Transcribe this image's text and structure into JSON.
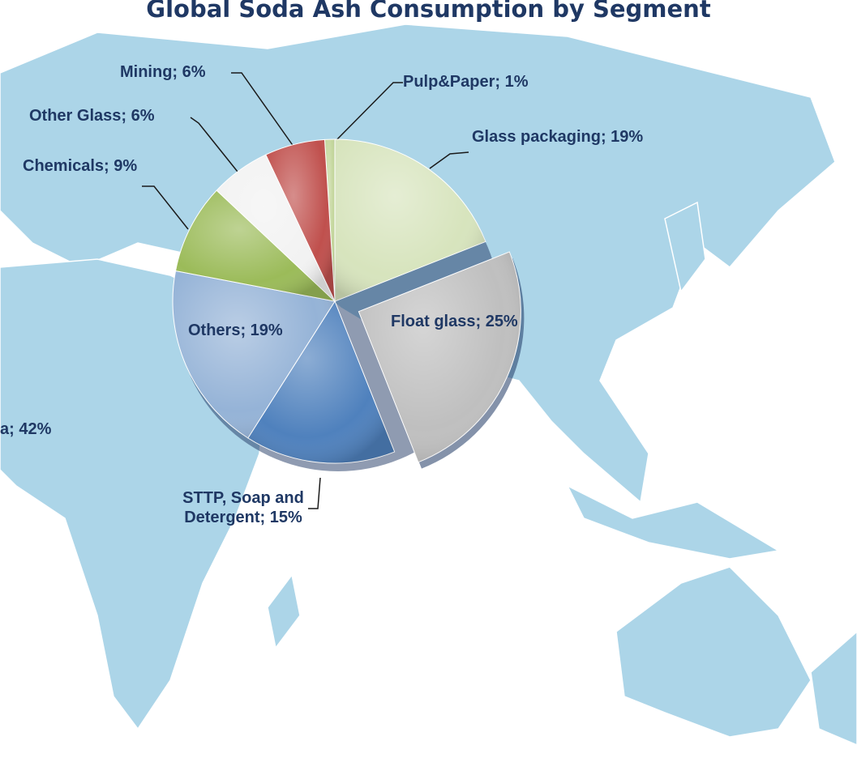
{
  "chart_data": {
    "type": "pie",
    "title": "Global Soda Ash Consumption by Segment",
    "values": [
      1,
      19,
      25,
      15,
      19,
      9,
      6,
      6
    ],
    "value_labels": [
      "Pulp&Paper; 1%",
      "Glass packaging; 19%",
      "Float glass; 25%",
      "STTP, Soap and Detergent; 15%",
      "Others; 19%",
      "Chemicals; 9%",
      "Other Glass; 6%",
      "Mining; 6%"
    ],
    "colors": [
      "#c3d69b",
      "#d7e4bd",
      "#bfbfbf",
      "#4f81bd",
      "#95b3d7",
      "#9bbb59",
      "#f2f2f2",
      "#c0504d"
    ],
    "exploded": [
      2
    ],
    "annotations": [
      "a; 42%"
    ]
  }
}
